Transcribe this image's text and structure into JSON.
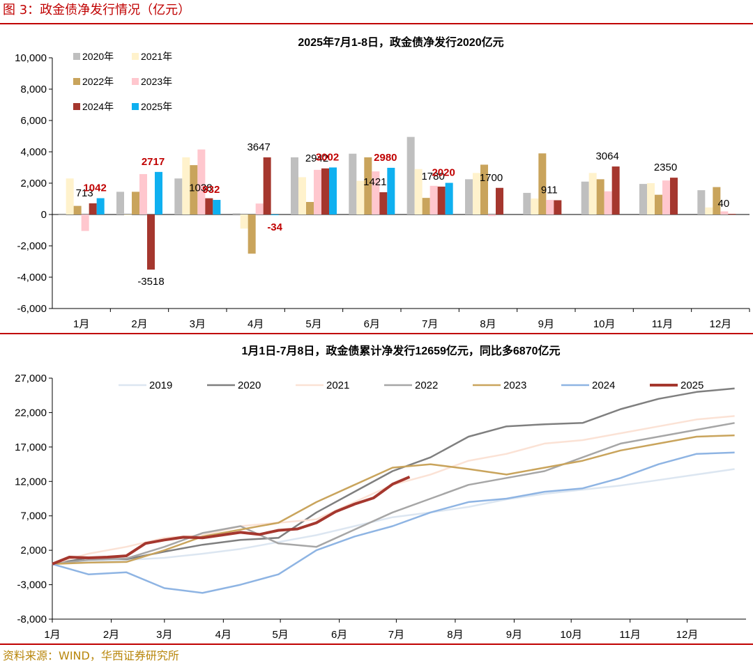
{
  "figure": {
    "title": "图 3：政金债净发行情况（亿元）",
    "source": "资料来源：WIND，华西证券研究所"
  },
  "colors": {
    "accent": "#c00000",
    "source": "#b8860b"
  },
  "chart_data": [
    {
      "type": "bar",
      "title": "2025年7月1-8日，政金债净发行2020亿元",
      "xlabel": "",
      "ylabel": "",
      "ylim": [
        -6000,
        10000
      ],
      "yticks": [
        -6000,
        -4000,
        -2000,
        0,
        2000,
        4000,
        6000,
        8000,
        10000
      ],
      "ytick_labels": [
        "-6,000",
        "-4,000",
        "-2,000",
        "0",
        "2,000",
        "4,000",
        "6,000",
        "8,000",
        "10,000"
      ],
      "grid": false,
      "legend_position": "top-left",
      "categories": [
        "1月",
        "2月",
        "3月",
        "4月",
        "5月",
        "6月",
        "7月",
        "8月",
        "9月",
        "10月",
        "11月",
        "12月"
      ],
      "series": [
        {
          "name": "2020年",
          "color": "#bfbfbf",
          "values": [
            -50,
            1450,
            2300,
            80,
            3650,
            3880,
            4950,
            2250,
            1380,
            2100,
            1950,
            1550
          ]
        },
        {
          "name": "2021年",
          "color": "#fff2cc",
          "values": [
            2300,
            -30,
            3650,
            -900,
            2380,
            2150,
            2900,
            2650,
            1020,
            2650,
            2000,
            450
          ]
        },
        {
          "name": "2022年",
          "color": "#c9a45c",
          "values": [
            550,
            1450,
            3150,
            -2500,
            800,
            3650,
            1060,
            3180,
            3900,
            2250,
            1260,
            1750
          ]
        },
        {
          "name": "2023年",
          "color": "#ffc7ce",
          "values": [
            -1050,
            2580,
            4150,
            700,
            2850,
            2750,
            1830,
            -100,
            930,
            1480,
            2170,
            200
          ]
        },
        {
          "name": "2024年",
          "color": "#a5372e",
          "values": [
            713,
            -3518,
            1038,
            3647,
            2942,
            1421,
            1780,
            1700,
            911,
            3064,
            2350,
            40
          ]
        },
        {
          "name": "2025年",
          "color": "#0fb0f0",
          "values": [
            1042,
            2717,
            932,
            -34,
            3002,
            2980,
            2020,
            null,
            null,
            null,
            null,
            null
          ]
        }
      ],
      "data_labels": [
        {
          "series": "2024年",
          "category": "1月",
          "text": "713",
          "color": "#000000"
        },
        {
          "series": "2025年",
          "category": "1月",
          "text": "1042",
          "color": "#c00000"
        },
        {
          "series": "2024年",
          "category": "2月",
          "text": "-3518",
          "color": "#000000"
        },
        {
          "series": "2025年",
          "category": "2月",
          "text": "2717",
          "color": "#c00000"
        },
        {
          "series": "2024年",
          "category": "3月",
          "text": "1038",
          "color": "#000000"
        },
        {
          "series": "2025年",
          "category": "3月",
          "text": "932",
          "color": "#c00000"
        },
        {
          "series": "2024年",
          "category": "4月",
          "text": "3647",
          "color": "#000000"
        },
        {
          "series": "2025年",
          "category": "4月",
          "text": "-34",
          "color": "#c00000"
        },
        {
          "series": "2024年",
          "category": "5月",
          "text": "2942",
          "color": "#000000"
        },
        {
          "series": "2025年",
          "category": "5月",
          "text": "3002",
          "color": "#c00000"
        },
        {
          "series": "2024年",
          "category": "6月",
          "text": "1421",
          "color": "#000000"
        },
        {
          "series": "2025年",
          "category": "6月",
          "text": "2980",
          "color": "#c00000"
        },
        {
          "series": "2024年",
          "category": "7月",
          "text": "1780",
          "color": "#000000"
        },
        {
          "series": "2025年",
          "category": "7月",
          "text": "2020",
          "color": "#c00000"
        },
        {
          "series": "2024年",
          "category": "8月",
          "text": "1700",
          "color": "#000000"
        },
        {
          "series": "2024年",
          "category": "9月",
          "text": "911",
          "color": "#000000"
        },
        {
          "series": "2024年",
          "category": "10月",
          "text": "3064",
          "color": "#000000"
        },
        {
          "series": "2024年",
          "category": "11月",
          "text": "2350",
          "color": "#000000"
        },
        {
          "series": "2024年",
          "category": "12月",
          "text": "40",
          "color": "#000000"
        }
      ]
    },
    {
      "type": "line",
      "title": "1月1日-7月8日，政金债累计净发行12659亿元，同比多6870亿元",
      "xlabel": "",
      "ylabel": "",
      "ylim": [
        -8000,
        27000
      ],
      "yticks": [
        -8000,
        -3000,
        2000,
        7000,
        12000,
        17000,
        22000,
        27000
      ],
      "ytick_labels": [
        "-8,000",
        "-3,000",
        "2,000",
        "7,000",
        "12,000",
        "17,000",
        "22,000",
        "27,000"
      ],
      "x_ticks": [
        "1月",
        "2月",
        "3月",
        "4月",
        "5月",
        "6月",
        "7月",
        "8月",
        "9月",
        "10月",
        "11月",
        "12月"
      ],
      "x_unit": "day_of_year",
      "x_tick_days": [
        1,
        32,
        60,
        91,
        121,
        152,
        182,
        213,
        244,
        274,
        305,
        335
      ],
      "xlim": [
        1,
        366
      ],
      "grid": false,
      "legend_position": "top",
      "series": [
        {
          "name": "2019",
          "color": "#dce6f1",
          "width": 2.5,
          "x": [
            1,
            20,
            40,
            60,
            80,
            100,
            120,
            140,
            160,
            180,
            200,
            220,
            240,
            260,
            280,
            300,
            320,
            340,
            360
          ],
          "y": [
            0,
            300,
            600,
            900,
            1500,
            2200,
            3200,
            4200,
            5500,
            6800,
            7500,
            8300,
            9400,
            10200,
            10800,
            11400,
            12200,
            13000,
            13800
          ]
        },
        {
          "name": "2020",
          "color": "#7f7f7f",
          "width": 2.5,
          "x": [
            1,
            20,
            40,
            60,
            80,
            100,
            120,
            140,
            160,
            180,
            200,
            220,
            240,
            260,
            280,
            300,
            320,
            340,
            360
          ],
          "y": [
            0,
            900,
            700,
            1800,
            2800,
            3500,
            3800,
            7500,
            10500,
            13500,
            15500,
            18500,
            20000,
            20300,
            20500,
            22500,
            24000,
            25000,
            25500
          ]
        },
        {
          "name": "2021",
          "color": "#fbe2d5",
          "width": 2.5,
          "x": [
            1,
            20,
            40,
            60,
            80,
            100,
            120,
            140,
            160,
            180,
            200,
            220,
            240,
            260,
            280,
            300,
            320,
            340,
            360
          ],
          "y": [
            0,
            1500,
            2500,
            3800,
            4200,
            5500,
            6000,
            6500,
            9000,
            11500,
            13000,
            15000,
            16000,
            17500,
            18000,
            19000,
            20000,
            21000,
            21500
          ]
        },
        {
          "name": "2022",
          "color": "#a6a6a6",
          "width": 2.5,
          "x": [
            1,
            20,
            40,
            60,
            80,
            100,
            120,
            140,
            160,
            180,
            200,
            220,
            240,
            260,
            280,
            300,
            320,
            340,
            360
          ],
          "y": [
            0,
            600,
            800,
            2500,
            4500,
            5500,
            3000,
            2500,
            5000,
            7500,
            9500,
            11500,
            12500,
            13500,
            15500,
            17500,
            18500,
            19500,
            20500
          ]
        },
        {
          "name": "2023",
          "color": "#c9a45c",
          "width": 2.5,
          "x": [
            1,
            20,
            40,
            60,
            80,
            100,
            120,
            140,
            160,
            180,
            200,
            220,
            240,
            260,
            280,
            300,
            320,
            340,
            360
          ],
          "y": [
            0,
            200,
            300,
            2000,
            4000,
            5000,
            6000,
            9000,
            11500,
            14000,
            14500,
            13800,
            13000,
            14000,
            15000,
            16500,
            17500,
            18500,
            18700
          ]
        },
        {
          "name": "2024",
          "color": "#8eb4e3",
          "width": 2.5,
          "x": [
            1,
            20,
            40,
            60,
            80,
            100,
            120,
            140,
            160,
            180,
            200,
            220,
            240,
            260,
            280,
            300,
            320,
            340,
            360
          ],
          "y": [
            0,
            -1500,
            -1200,
            -3500,
            -4200,
            -3000,
            -1500,
            2000,
            4000,
            5500,
            7500,
            9000,
            9500,
            10500,
            11000,
            12500,
            14500,
            16000,
            16200
          ]
        },
        {
          "name": "2025",
          "color": "#a5372e",
          "width": 4,
          "x": [
            1,
            10,
            20,
            30,
            40,
            50,
            60,
            70,
            80,
            90,
            100,
            110,
            120,
            130,
            140,
            150,
            160,
            170,
            180,
            189
          ],
          "y": [
            0,
            1000,
            900,
            1000,
            1200,
            3000,
            3500,
            3900,
            3800,
            4200,
            4600,
            4300,
            4900,
            5100,
            6000,
            7600,
            8700,
            9600,
            11600,
            12659
          ]
        }
      ]
    }
  ]
}
